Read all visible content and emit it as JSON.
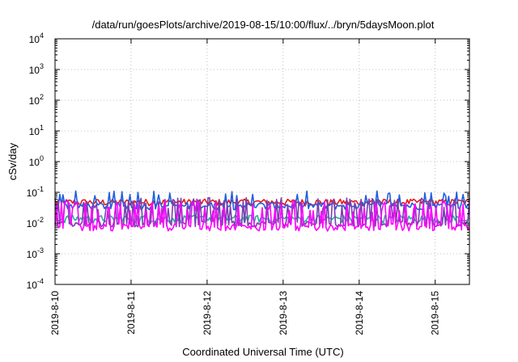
{
  "chart_data": {
    "type": "line",
    "title": "/data/run/goesPlots/archive/2019-08-15/10:00/flux/../bryn/5daysMoon.plot",
    "xlabel": "Coordinated Universal Time (UTC)",
    "ylabel": "cSv/day",
    "yscale": "log",
    "ylim_exp": [
      -4,
      4
    ],
    "y_tick_exponents": [
      -4,
      -3,
      -2,
      -1,
      0,
      1,
      2,
      3,
      4
    ],
    "y_tick_base": "10",
    "x_ticks": [
      "2019-8-10",
      "2019-8-11",
      "2019-8-12",
      "2019-8-13",
      "2019-8-14",
      "2019-8-15"
    ],
    "xlim_days": [
      0,
      5.45
    ],
    "grid": true,
    "colors": {
      "red": "#e8191b",
      "blue": "#1f5fe0",
      "purple": "#7b3fb0",
      "teal": "#1fb59a",
      "magenta": "#ff00ff"
    },
    "series": [
      {
        "color": "red",
        "base": 0.048,
        "amp": 0.012
      },
      {
        "color": "blue",
        "base": 0.037,
        "amp": 0.01
      },
      {
        "color": "teal",
        "base": 0.014,
        "amp": 0.004
      },
      {
        "color": "purple",
        "base": 0.0095,
        "amp": 0.002
      },
      {
        "color": "magenta",
        "base": 0.0075,
        "amp": 0.002
      }
    ]
  }
}
